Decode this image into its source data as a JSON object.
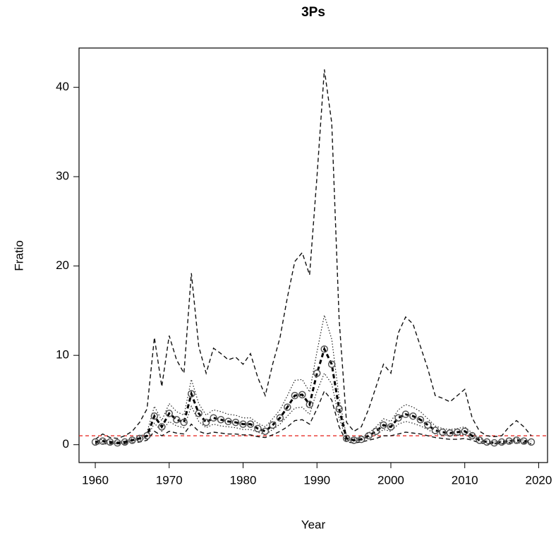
{
  "chart_data": {
    "type": "line",
    "title": "3Ps",
    "xlabel": "Year",
    "ylabel": "Fratio",
    "x": [
      1960,
      1961,
      1962,
      1963,
      1964,
      1965,
      1966,
      1967,
      1968,
      1969,
      1970,
      1971,
      1972,
      1973,
      1974,
      1975,
      1976,
      1977,
      1978,
      1979,
      1980,
      1981,
      1982,
      1983,
      1984,
      1985,
      1986,
      1987,
      1988,
      1989,
      1990,
      1991,
      1992,
      1993,
      1994,
      1995,
      1996,
      1997,
      1998,
      1999,
      2000,
      2001,
      2002,
      2003,
      2004,
      2005,
      2006,
      2007,
      2008,
      2009,
      2010,
      2011,
      2012,
      2013,
      2014,
      2015,
      2016,
      2017,
      2018,
      2019
    ],
    "xlim": [
      1957.8,
      2021.2
    ],
    "xticks": [
      1960,
      1970,
      1980,
      1990,
      2000,
      2010,
      2020
    ],
    "ylim": [
      -2,
      44.4
    ],
    "yticks": [
      0,
      10,
      20,
      30,
      40
    ],
    "reference_line": {
      "value": 1,
      "color": "#e8302a"
    },
    "series": [
      {
        "color": "#111111",
        "linestyle": "dashed",
        "linewidth": 1.4,
        "values": [
          0.6,
          1.2,
          0.8,
          0.7,
          1.0,
          1.5,
          2.5,
          4.0,
          12.0,
          6.5,
          12.2,
          9.5,
          8.0,
          19.2,
          11.0,
          8.0,
          10.8,
          10.2,
          9.5,
          9.8,
          9.0,
          10.2,
          7.5,
          5.5,
          9.0,
          12.0,
          16.5,
          20.5,
          21.5,
          19.0,
          30.0,
          42.0,
          36.0,
          14.0,
          2.5,
          1.5,
          2.0,
          4.0,
          6.5,
          9.0,
          8.0,
          12.5,
          14.3,
          13.5,
          11.0,
          8.5,
          5.5,
          5.2,
          4.8,
          5.5,
          6.2,
          3.0,
          1.5,
          1.0,
          0.9,
          1.0,
          2.0,
          2.7,
          2.0,
          1.0
        ]
      },
      {
        "color": "#111111",
        "linestyle": "dashed",
        "linewidth": 1.4,
        "values": [
          0.1,
          0.1,
          0.1,
          0.1,
          0.1,
          0.2,
          0.3,
          0.5,
          1.5,
          1.0,
          1.5,
          1.3,
          1.2,
          2.3,
          1.5,
          1.2,
          1.4,
          1.3,
          1.2,
          1.2,
          1.1,
          1.1,
          0.9,
          0.8,
          1.1,
          1.5,
          2.0,
          2.7,
          2.8,
          2.3,
          4.0,
          6.0,
          5.0,
          2.0,
          0.3,
          0.2,
          0.3,
          0.5,
          0.7,
          1.0,
          1.0,
          1.2,
          1.4,
          1.3,
          1.2,
          1.0,
          0.8,
          0.7,
          0.6,
          0.6,
          0.7,
          0.5,
          0.2,
          0.1,
          0.1,
          0.1,
          0.2,
          0.2,
          0.2,
          0.1
        ]
      },
      {
        "color": "#222222",
        "linestyle": "dotted",
        "linewidth": 1.2,
        "values": [
          0.4,
          0.6,
          0.4,
          0.3,
          0.4,
          0.7,
          0.9,
          1.4,
          4.3,
          2.7,
          4.6,
          3.7,
          3.3,
          7.3,
          4.6,
          3.3,
          3.9,
          3.7,
          3.4,
          3.3,
          3.0,
          3.0,
          2.4,
          2.0,
          2.9,
          3.9,
          5.5,
          7.2,
          7.3,
          5.9,
          10.4,
          14.5,
          11.8,
          5.2,
          0.9,
          0.7,
          0.8,
          1.3,
          2.0,
          2.9,
          2.6,
          3.9,
          4.5,
          4.2,
          3.7,
          2.9,
          2.1,
          1.8,
          1.7,
          1.8,
          2.0,
          1.3,
          0.7,
          0.4,
          0.3,
          0.4,
          0.5,
          0.7,
          0.5,
          0.4
        ]
      },
      {
        "color": "#222222",
        "linestyle": "dotted",
        "linewidth": 1.2,
        "values": [
          0.2,
          0.3,
          0.2,
          0.15,
          0.2,
          0.4,
          0.5,
          0.8,
          2.4,
          1.5,
          2.6,
          2.1,
          1.9,
          4.3,
          2.6,
          1.9,
          2.3,
          2.1,
          2.0,
          1.9,
          1.7,
          1.7,
          1.4,
          1.1,
          1.7,
          2.3,
          3.2,
          4.1,
          4.2,
          3.4,
          6.0,
          8.0,
          6.8,
          3.0,
          0.5,
          0.4,
          0.5,
          0.8,
          1.1,
          1.7,
          1.5,
          2.3,
          2.6,
          2.4,
          2.1,
          1.7,
          1.2,
          1.1,
          1.0,
          1.1,
          1.1,
          0.8,
          0.4,
          0.2,
          0.15,
          0.2,
          0.3,
          0.4,
          0.3,
          0.2
        ]
      },
      {
        "color": "#000000",
        "linestyle": "dashed",
        "linewidth": 3,
        "markers": true,
        "values": [
          0.3,
          0.4,
          0.3,
          0.2,
          0.3,
          0.5,
          0.7,
          1.0,
          3.2,
          2.0,
          3.5,
          2.8,
          2.5,
          5.7,
          3.5,
          2.5,
          3.0,
          2.8,
          2.6,
          2.5,
          2.3,
          2.3,
          1.8,
          1.5,
          2.2,
          3.0,
          4.2,
          5.5,
          5.6,
          4.5,
          8.0,
          10.7,
          9.0,
          4.0,
          0.7,
          0.5,
          0.6,
          1.0,
          1.5,
          2.2,
          2.0,
          3.0,
          3.4,
          3.2,
          2.8,
          2.2,
          1.6,
          1.4,
          1.3,
          1.4,
          1.5,
          1.0,
          0.5,
          0.3,
          0.2,
          0.3,
          0.4,
          0.5,
          0.4,
          0.3
        ]
      }
    ]
  }
}
